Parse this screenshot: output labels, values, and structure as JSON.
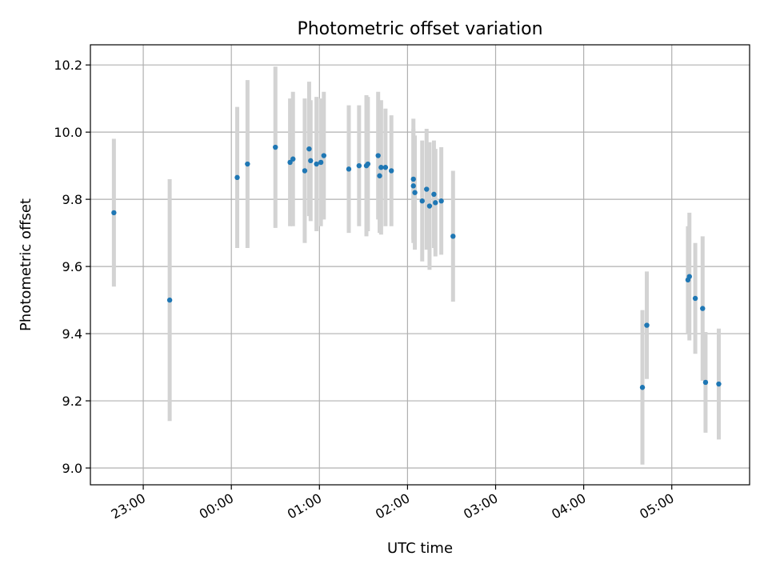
{
  "chart_data": {
    "type": "scatter",
    "title": "Photometric offset variation",
    "xlabel": "UTC time",
    "ylabel": "Photometric offset",
    "xlim": [
      "22:24",
      "05:53"
    ],
    "ylim": [
      8.95,
      10.26
    ],
    "grid": true,
    "x_ticks": [
      "23:00",
      "00:00",
      "01:00",
      "02:00",
      "03:00",
      "04:00",
      "05:00"
    ],
    "y_ticks": [
      9.0,
      9.2,
      9.4,
      9.6,
      9.8,
      10.0,
      10.2
    ],
    "y_tick_labels": [
      "9.0",
      "9.2",
      "9.4",
      "9.6",
      "9.8",
      "10.0",
      "10.2"
    ],
    "colors": {
      "point": "#1f77b4",
      "errorbar": "#d3d3d3"
    },
    "points": [
      {
        "x": "22:40",
        "y": 9.76,
        "err": 0.22
      },
      {
        "x": "23:18",
        "y": 9.5,
        "err": 0.36
      },
      {
        "x": "00:04",
        "y": 9.865,
        "err": 0.21
      },
      {
        "x": "00:11",
        "y": 9.905,
        "err": 0.25
      },
      {
        "x": "00:30",
        "y": 9.955,
        "err": 0.24
      },
      {
        "x": "00:40",
        "y": 9.91,
        "err": 0.19
      },
      {
        "x": "00:42",
        "y": 9.92,
        "err": 0.2
      },
      {
        "x": "00:50",
        "y": 9.885,
        "err": 0.215
      },
      {
        "x": "00:53",
        "y": 9.95,
        "err": 0.2
      },
      {
        "x": "00:54",
        "y": 9.915,
        "err": 0.18
      },
      {
        "x": "00:58",
        "y": 9.905,
        "err": 0.2
      },
      {
        "x": "01:01",
        "y": 9.91,
        "err": 0.19
      },
      {
        "x": "01:03",
        "y": 9.93,
        "err": 0.19
      },
      {
        "x": "01:20",
        "y": 9.89,
        "err": 0.19
      },
      {
        "x": "01:27",
        "y": 9.9,
        "err": 0.18
      },
      {
        "x": "01:32",
        "y": 9.9,
        "err": 0.21
      },
      {
        "x": "01:33",
        "y": 9.905,
        "err": 0.2
      },
      {
        "x": "01:40",
        "y": 9.93,
        "err": 0.19
      },
      {
        "x": "01:41",
        "y": 9.87,
        "err": 0.17
      },
      {
        "x": "01:42",
        "y": 9.895,
        "err": 0.2
      },
      {
        "x": "01:45",
        "y": 9.895,
        "err": 0.175
      },
      {
        "x": "01:49",
        "y": 9.885,
        "err": 0.165
      },
      {
        "x": "02:04",
        "y": 9.86,
        "err": 0.18
      },
      {
        "x": "02:04",
        "y": 9.84,
        "err": 0.17
      },
      {
        "x": "02:05",
        "y": 9.82,
        "err": 0.17
      },
      {
        "x": "02:10",
        "y": 9.795,
        "err": 0.18
      },
      {
        "x": "02:13",
        "y": 9.83,
        "err": 0.18
      },
      {
        "x": "02:15",
        "y": 9.78,
        "err": 0.19
      },
      {
        "x": "02:18",
        "y": 9.815,
        "err": 0.16
      },
      {
        "x": "02:19",
        "y": 9.79,
        "err": 0.16
      },
      {
        "x": "02:23",
        "y": 9.795,
        "err": 0.16
      },
      {
        "x": "02:31",
        "y": 9.69,
        "err": 0.195
      },
      {
        "x": "04:40",
        "y": 9.24,
        "err": 0.23
      },
      {
        "x": "04:43",
        "y": 9.425,
        "err": 0.16
      },
      {
        "x": "05:11",
        "y": 9.56,
        "err": 0.16
      },
      {
        "x": "05:12",
        "y": 9.57,
        "err": 0.19
      },
      {
        "x": "05:16",
        "y": 9.505,
        "err": 0.165
      },
      {
        "x": "05:21",
        "y": 9.475,
        "err": 0.215
      },
      {
        "x": "05:23",
        "y": 9.255,
        "err": 0.15
      },
      {
        "x": "05:32",
        "y": 9.25,
        "err": 0.165
      }
    ]
  }
}
